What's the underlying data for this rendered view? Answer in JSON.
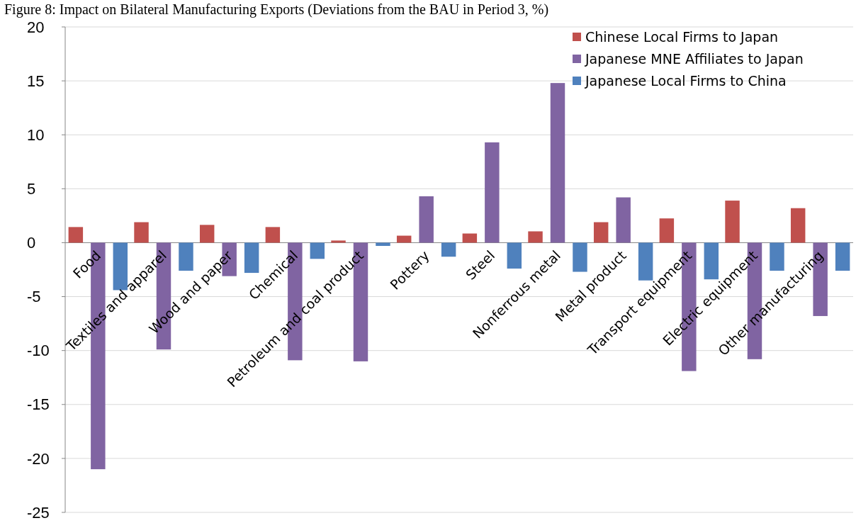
{
  "chart_data": {
    "type": "bar",
    "title": "Figure 8: Impact on Bilateral Manufacturing Exports (Deviations from the BAU in Period 3, %)",
    "categories": [
      "Food",
      "Textiles and apparel",
      "Wood and paper",
      "Chemical",
      "Petroleum and coal product",
      "Pottery",
      "Steel",
      "Nonferrous metal",
      "Metal product",
      "Transport equipment",
      "Electric equipment",
      "Other manufacturing"
    ],
    "series": [
      {
        "name": "Chinese Local Firms to Japan",
        "color": "#c0504d",
        "values": [
          1.45,
          1.9,
          1.65,
          1.45,
          0.2,
          0.65,
          0.85,
          1.05,
          1.9,
          2.25,
          3.9,
          3.2
        ]
      },
      {
        "name": "Japanese MNE Affiliates to Japan",
        "color": "#8064a2",
        "values": [
          -21.0,
          -9.9,
          -3.1,
          -10.9,
          -11.0,
          4.3,
          9.3,
          14.8,
          4.2,
          -11.9,
          -10.8,
          -6.8
        ]
      },
      {
        "name": "Japanese Local Firms to China",
        "color": "#4f81bd",
        "values": [
          -4.4,
          -2.6,
          -2.8,
          -1.5,
          -0.3,
          -1.3,
          -2.4,
          -2.7,
          -3.5,
          -3.4,
          -2.6,
          -2.6
        ]
      }
    ],
    "ylim": [
      -25,
      20
    ],
    "yticks": [
      -25,
      -20,
      -15,
      -10,
      -5,
      0,
      5,
      10,
      15,
      20
    ],
    "grid": "y",
    "legend": "top right"
  }
}
